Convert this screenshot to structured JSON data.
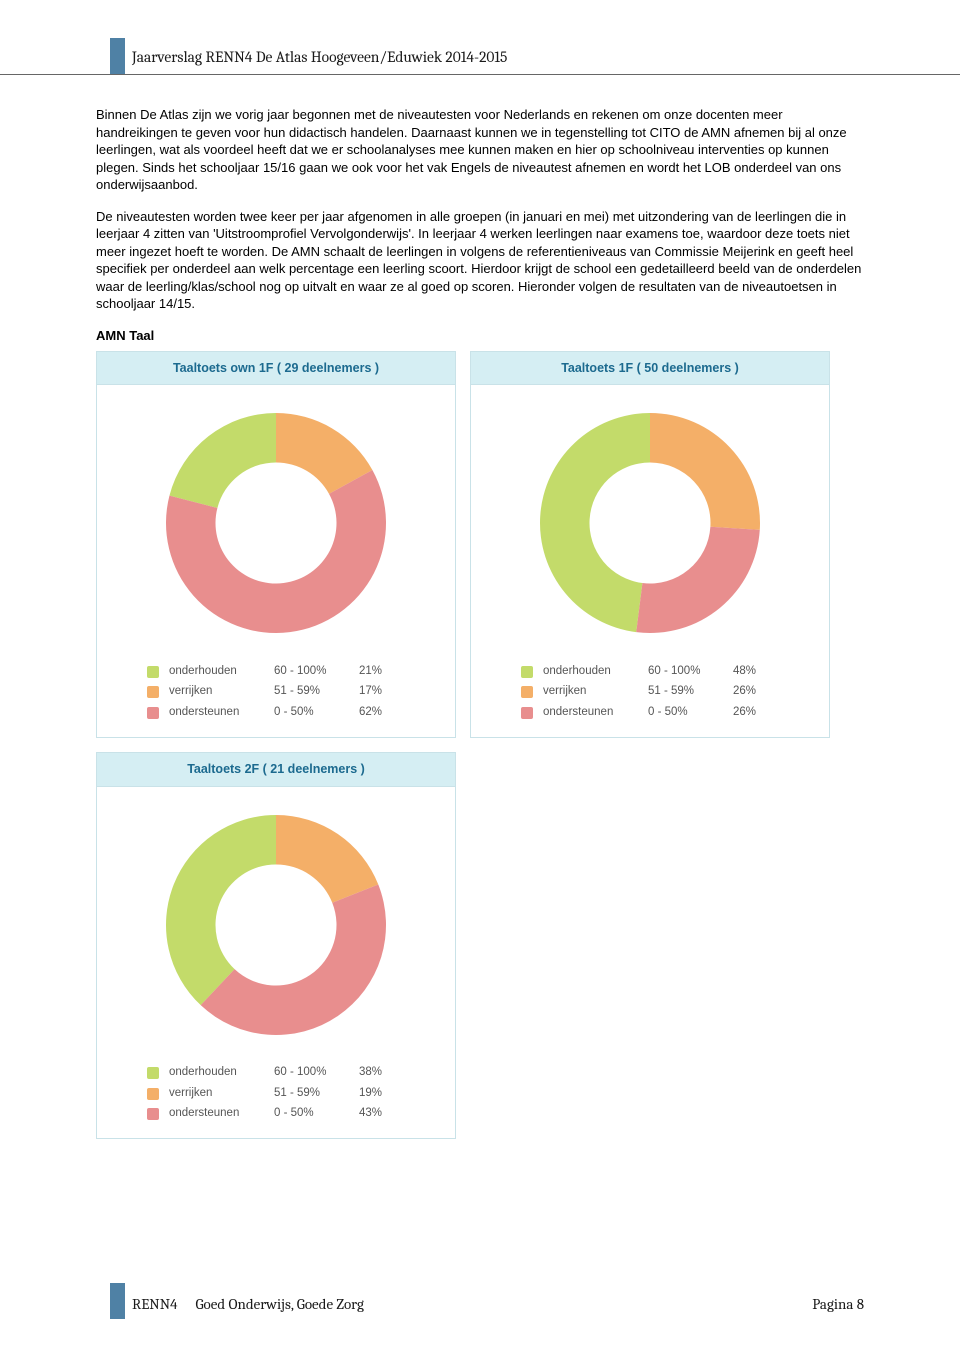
{
  "header": {
    "title": "Jaarverslag RENN4 De Atlas Hoogeveen/Eduwiek 2014-2015"
  },
  "paragraphs": {
    "p1": "Binnen De Atlas zijn we vorig jaar begonnen met de niveautesten voor Nederlands en rekenen om onze docenten meer handreikingen te geven voor hun didactisch handelen. Daarnaast kunnen we in tegenstelling tot CITO de AMN afnemen bij al onze leerlingen, wat als voordeel heeft dat we er schoolanalyses mee kunnen maken en hier op schoolniveau interventies op kunnen plegen. Sinds het schooljaar 15/16 gaan we ook voor het vak Engels de niveautest afnemen en wordt het LOB onderdeel van ons onderwijsaanbod.",
    "p2": "De niveautesten worden twee keer per jaar afgenomen in alle groepen (in januari en mei) met uitzondering van de leerlingen die in leerjaar 4 zitten van 'Uitstroomprofiel Vervolgonderwijs'. In leerjaar 4 werken leerlingen naar examens toe, waardoor deze toets niet meer ingezet hoeft te worden. De AMN schaalt de leerlingen in volgens de referentieniveaus van Commissie Meijerink en geeft heel specifiek per onderdeel aan welk percentage een leerling scoort. Hierdoor krijgt de school een gedetailleerd beeld van de onderdelen waar de leerling/klas/school nog op uitvalt en waar ze al goed op scoren. Hieronder volgen de resultaten van de niveautoetsen in schooljaar 14/15."
  },
  "section_title": "AMN Taal",
  "legend_common": {
    "items": [
      {
        "label": "onderhouden",
        "range": "60 - 100%",
        "color": "#c3db6a"
      },
      {
        "label": "verrijken",
        "range": "51 - 59%",
        "color": "#f4af68"
      },
      {
        "label": "ondersteunen",
        "range": "0 - 50%",
        "color": "#e88e8e"
      }
    ]
  },
  "charts": [
    {
      "title": "Taaltoets own 1F ( 29 deelnemers )",
      "type": "donut",
      "inner_radius_pct": 55,
      "background_color": "#ffffff",
      "start_angle_deg": -90,
      "segments": [
        {
          "label": "onderhouden",
          "value": 21,
          "color": "#c3db6a"
        },
        {
          "label": "verrijken",
          "value": 17,
          "color": "#f4af68"
        },
        {
          "label": "ondersteunen",
          "value": 62,
          "color": "#e88e8e"
        }
      ],
      "legend_pct": [
        "21%",
        "17%",
        "62%"
      ]
    },
    {
      "title": "Taaltoets 1F ( 50 deelnemers )",
      "type": "donut",
      "inner_radius_pct": 55,
      "background_color": "#ffffff",
      "start_angle_deg": -90,
      "segments": [
        {
          "label": "onderhouden",
          "value": 48,
          "color": "#c3db6a"
        },
        {
          "label": "verrijken",
          "value": 26,
          "color": "#f4af68"
        },
        {
          "label": "ondersteunen",
          "value": 26,
          "color": "#e88e8e"
        }
      ],
      "legend_pct": [
        "48%",
        "26%",
        "26%"
      ]
    },
    {
      "title": "Taaltoets 2F ( 21 deelnemers )",
      "type": "donut",
      "inner_radius_pct": 55,
      "background_color": "#ffffff",
      "start_angle_deg": -90,
      "segments": [
        {
          "label": "onderhouden",
          "value": 38,
          "color": "#c3db6a"
        },
        {
          "label": "verrijken",
          "value": 19,
          "color": "#f4af68"
        },
        {
          "label": "ondersteunen",
          "value": 43,
          "color": "#e88e8e"
        }
      ],
      "legend_pct": [
        "38%",
        "19%",
        "43%"
      ]
    }
  ],
  "footer": {
    "org": "RENN4",
    "tagline": "Goed Onderwijs, Goede Zorg",
    "page": "Pagina 8"
  },
  "colors": {
    "header_bg": "#d5eef3",
    "header_text": "#1c6a8f",
    "card_border": "#c9e2e8",
    "margin_bar": "#4f81a5"
  }
}
